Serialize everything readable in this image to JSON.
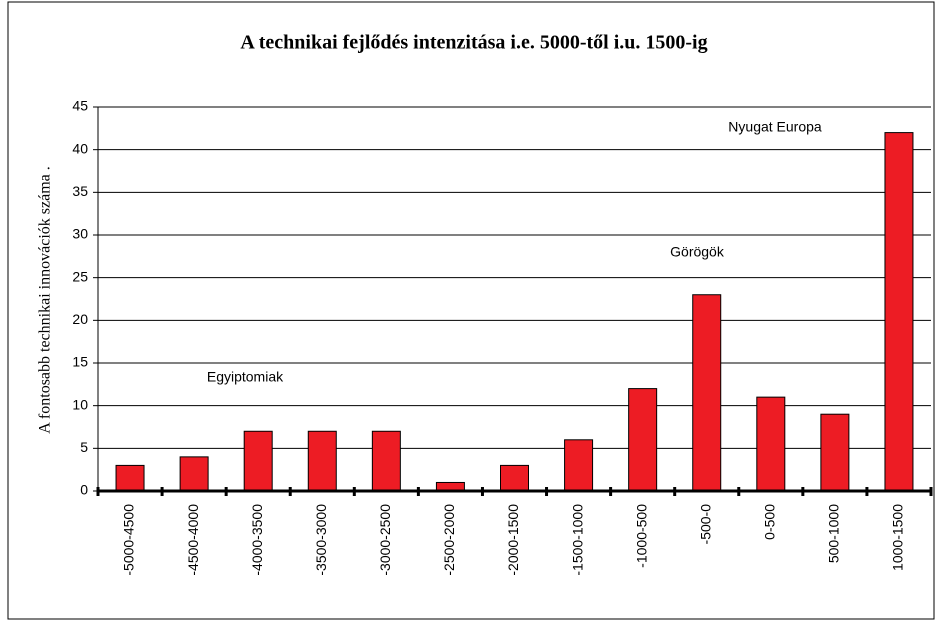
{
  "chart_data": {
    "type": "bar",
    "title": "A technikai fejlődés intenzitása i.e. 5000-től i.u. 1500-ig",
    "y_label": "A fontosabb technikai innovációk száma .",
    "categories": [
      "-5000-4500",
      "-4500-4000",
      "-4000-3500",
      "-3500-3000",
      "-3000-2500",
      "-2500-2000",
      "-2000-1500",
      "-1500-1000",
      "-1000-500",
      "-500-0",
      "0-500",
      "500-1000",
      "1000-1500"
    ],
    "values": [
      3,
      4,
      7,
      7,
      7,
      1,
      3,
      6,
      12,
      23,
      11,
      9,
      42
    ],
    "color": "#ed1c24",
    "ylim": [
      0,
      45
    ],
    "yticks": [
      0,
      5,
      10,
      15,
      20,
      25,
      30,
      35,
      40,
      45
    ],
    "grid": true,
    "annotations": [
      "Egyiptomiak",
      "Görögök",
      "Nyugat Europa"
    ]
  }
}
